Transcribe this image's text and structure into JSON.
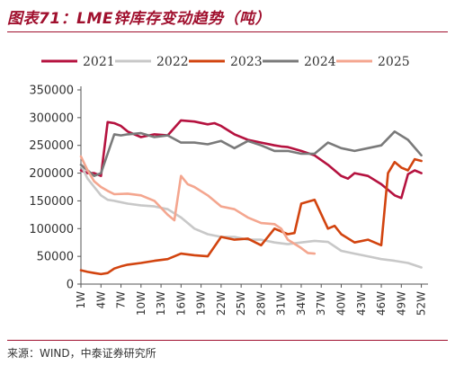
{
  "header": {
    "title": "图表71：LME锌库存变动趋势（吨）"
  },
  "footer": {
    "source": "来源：WIND，中泰证券研究所"
  },
  "colors": {
    "accent": "#a0102e",
    "s2021": "#b5123f",
    "s2022": "#c8c8c8",
    "s2023": "#d2440f",
    "s2024": "#7a7a7a",
    "s2025": "#f4a68f"
  },
  "chart_data": {
    "type": "line",
    "ylim": [
      0,
      350000
    ],
    "y_ticks": [
      0,
      50000,
      100000,
      150000,
      200000,
      250000,
      300000,
      350000
    ],
    "y_tick_labels": [
      "0",
      "50000",
      "100000",
      "150000",
      "200000",
      "250000",
      "300000",
      "350000"
    ],
    "x_ticks": [
      1,
      4,
      7,
      10,
      13,
      16,
      19,
      22,
      25,
      28,
      31,
      34,
      37,
      40,
      43,
      46,
      49,
      52
    ],
    "x_tick_labels": [
      "1W",
      "4W",
      "7W",
      "10W",
      "13W",
      "16W",
      "19W",
      "22W",
      "25W",
      "28W",
      "31W",
      "34W",
      "37W",
      "40W",
      "43W",
      "46W",
      "49W",
      "52W"
    ],
    "xlim": [
      1,
      53
    ],
    "legend": "top",
    "grid": false,
    "series": [
      {
        "name": "2021",
        "color": "#b5123f",
        "x": [
          1,
          2,
          3,
          4,
          5,
          6,
          7,
          8,
          10,
          12,
          14,
          16,
          18,
          20,
          21,
          22,
          24,
          26,
          28,
          30,
          31,
          32,
          34,
          36,
          38,
          40,
          41,
          42,
          44,
          46,
          48,
          49,
          50,
          51,
          52
        ],
        "values": [
          205000,
          200000,
          200000,
          195000,
          292000,
          290000,
          285000,
          275000,
          265000,
          270000,
          268000,
          295000,
          293000,
          288000,
          290000,
          285000,
          270000,
          260000,
          255000,
          250000,
          248000,
          247000,
          240000,
          232000,
          215000,
          195000,
          190000,
          200000,
          195000,
          180000,
          160000,
          155000,
          198000,
          205000,
          200000
        ]
      },
      {
        "name": "2022",
        "color": "#c8c8c8",
        "x": [
          1,
          2,
          3,
          4,
          5,
          6,
          8,
          10,
          12,
          14,
          16,
          18,
          20,
          22,
          24,
          26,
          28,
          30,
          32,
          34,
          36,
          38,
          40,
          42,
          44,
          46,
          48,
          50,
          52
        ],
        "values": [
          215000,
          190000,
          175000,
          160000,
          152000,
          150000,
          145000,
          142000,
          140000,
          135000,
          120000,
          100000,
          90000,
          85000,
          85000,
          80000,
          80000,
          75000,
          72000,
          75000,
          78000,
          76000,
          60000,
          55000,
          50000,
          45000,
          42000,
          38000,
          30000
        ]
      },
      {
        "name": "2023",
        "color": "#d2440f",
        "x": [
          1,
          2,
          3,
          4,
          5,
          6,
          7,
          8,
          10,
          12,
          14,
          16,
          18,
          20,
          22,
          24,
          26,
          28,
          30,
          32,
          33,
          34,
          36,
          38,
          39,
          40,
          42,
          44,
          46,
          47,
          48,
          49,
          50,
          51,
          52
        ],
        "values": [
          25000,
          22000,
          20000,
          18000,
          20000,
          28000,
          32000,
          35000,
          38000,
          42000,
          45000,
          55000,
          52000,
          50000,
          85000,
          80000,
          82000,
          70000,
          100000,
          90000,
          92000,
          145000,
          152000,
          100000,
          105000,
          90000,
          75000,
          80000,
          70000,
          200000,
          220000,
          210000,
          205000,
          225000,
          222000
        ]
      },
      {
        "name": "2024",
        "color": "#7a7a7a",
        "x": [
          1,
          2,
          3,
          4,
          5,
          6,
          7,
          8,
          10,
          12,
          14,
          16,
          18,
          20,
          22,
          24,
          26,
          28,
          30,
          32,
          34,
          36,
          38,
          40,
          42,
          44,
          46,
          48,
          50,
          52
        ],
        "values": [
          215000,
          205000,
          195000,
          200000,
          235000,
          270000,
          268000,
          270000,
          272000,
          265000,
          268000,
          255000,
          255000,
          252000,
          258000,
          245000,
          258000,
          250000,
          240000,
          240000,
          235000,
          235000,
          255000,
          245000,
          240000,
          245000,
          250000,
          275000,
          260000,
          232000
        ]
      },
      {
        "name": "2025",
        "color": "#f4a68f",
        "x": [
          1,
          2,
          3,
          4,
          5,
          6,
          8,
          10,
          12,
          14,
          15,
          16,
          17,
          18,
          20,
          22,
          24,
          26,
          28,
          30,
          31,
          32,
          34,
          35,
          36
        ],
        "values": [
          230000,
          205000,
          185000,
          175000,
          168000,
          162000,
          163000,
          160000,
          150000,
          125000,
          115000,
          195000,
          180000,
          175000,
          160000,
          140000,
          135000,
          120000,
          110000,
          108000,
          100000,
          80000,
          65000,
          56000,
          55000
        ]
      }
    ]
  }
}
